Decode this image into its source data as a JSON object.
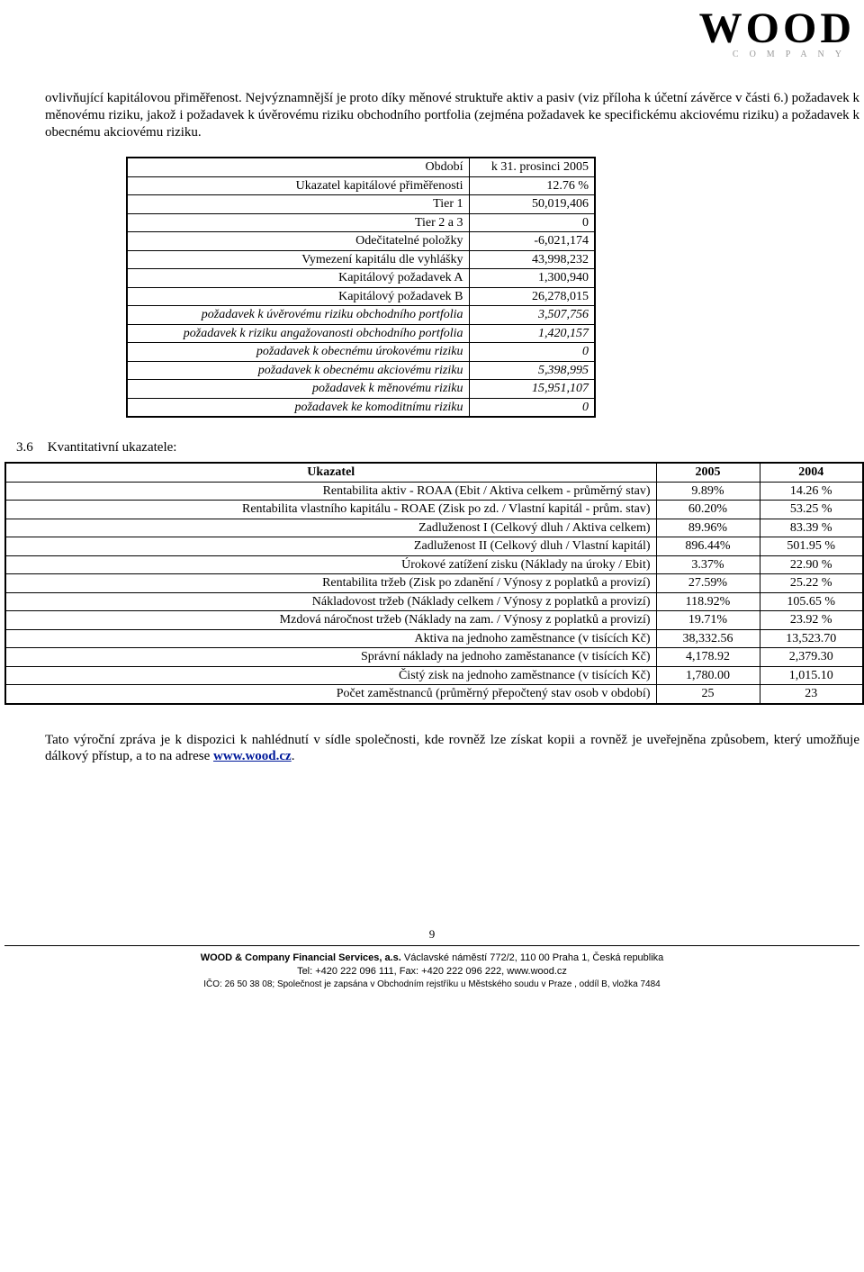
{
  "logo": {
    "text": "WOOD",
    "sub": "COMPANY"
  },
  "para1": "ovlivňující kapitálovou přiměřenost. Nejvýznamnější je proto díky měnové struktuře aktiv a pasiv (viz příloha k účetní závěrce v části 6.) požadavek k měnovému riziku, jakož i požadavek k úvěrovému riziku obchodního portfolia (zejména požadavek ke specifickému akciovému riziku) a požadavek k obecnému akciovému riziku.",
  "table1": {
    "rows": [
      {
        "label": "Období",
        "value": "k 31. prosinci 2005",
        "italic": false
      },
      {
        "label": "Ukazatel kapitálové přiměřenosti",
        "value": "12.76 %",
        "italic": false
      },
      {
        "label": "Tier 1",
        "value": "50,019,406",
        "italic": false
      },
      {
        "label": "Tier 2 a 3",
        "value": "0",
        "italic": false
      },
      {
        "label": "Odečitatelné položky",
        "value": "-6,021,174",
        "italic": false
      },
      {
        "label": "Vymezení kapitálu dle vyhlášky",
        "value": "43,998,232",
        "italic": false
      },
      {
        "label": "Kapitálový požadavek A",
        "value": "1,300,940",
        "italic": false
      },
      {
        "label": "Kapitálový požadavek B",
        "value": "26,278,015",
        "italic": false
      },
      {
        "label": "požadavek k úvěrovému riziku obchodního portfolia",
        "value": "3,507,756",
        "italic": true
      },
      {
        "label": "požadavek k riziku angažovanosti obchodního portfolia",
        "value": "1,420,157",
        "italic": true
      },
      {
        "label": "požadavek k obecnému úrokovému riziku",
        "value": "0",
        "italic": true
      },
      {
        "label": "požadavek k obecnému akciovému riziku",
        "value": "5,398,995",
        "italic": true
      },
      {
        "label": "požadavek k měnovému riziku",
        "value": "15,951,107",
        "italic": true
      },
      {
        "label": "požadavek ke komoditnímu riziku",
        "value": "0",
        "italic": true
      }
    ]
  },
  "section": {
    "num": "3.6",
    "title": "Kvantitativní ukazatele:"
  },
  "table2": {
    "headers": [
      "Ukazatel",
      "2005",
      "2004"
    ],
    "rows": [
      {
        "l": "Rentabilita aktiv - ROAA   (Ebit / Aktiva celkem - průměrný stav)",
        "a": "9.89%",
        "b": "14.26 %"
      },
      {
        "l": "Rentabilita vlastního kapitálu - ROAE   (Zisk po zd. / Vlastní kapitál - prům. stav)",
        "a": "60.20%",
        "b": "53.25 %"
      },
      {
        "l": "Zadluženost I   (Celkový dluh / Aktiva celkem)",
        "a": "89.96%",
        "b": "83.39 %"
      },
      {
        "l": "Zadluženost II   (Celkový dluh / Vlastní kapitál)",
        "a": "896.44%",
        "b": "501.95 %"
      },
      {
        "l": "Úrokové zatížení zisku   (Náklady na úroky / Ebit)",
        "a": "3.37%",
        "b": "22.90 %"
      },
      {
        "l": "Rentabilita tržeb   (Zisk po zdanění / Výnosy z poplatků a provizí)",
        "a": "27.59%",
        "b": "25.22 %"
      },
      {
        "l": "Nákladovost tržeb   (Náklady celkem / Výnosy z poplatků a provizí)",
        "a": "118.92%",
        "b": "105.65 %"
      },
      {
        "l": "Mzdová náročnost tržeb   (Náklady na zam. / Výnosy z poplatků a provizí)",
        "a": "19.71%",
        "b": "23.92 %"
      },
      {
        "l": "Aktiva na jednoho zaměstnance (v tisících Kč)",
        "a": "38,332.56",
        "b": "13,523.70"
      },
      {
        "l": "Správní náklady na jednoho zaměstanance (v tisících Kč)",
        "a": "4,178.92",
        "b": "2,379.30"
      },
      {
        "l": "Čistý zisk na jednoho zaměstnance (v tisících Kč)",
        "a": "1,780.00",
        "b": "1,015.10"
      },
      {
        "l": "Počet zaměstnanců (průměrný přepočtený stav osob v období)",
        "a": "25",
        "b": "23"
      }
    ]
  },
  "closing": {
    "pre": "Tato výroční zpráva je k dispozici k nahlédnutí v sídle společnosti, kde rovněž lze získat kopii a rovněž je uveřejněna způsobem, který umožňuje dálkový přístup, a to na adrese ",
    "link_text": "www.wood.cz",
    "post": "."
  },
  "page_num": "9",
  "footer": {
    "line1_bold": "WOOD & Company Financial Services, a.s.",
    "line1_rest": " Václavské náměstí 772/2, 110 00 Praha 1, Česká republika",
    "line2": "Tel: +420 222 096 111, Fax: +420 222 096 222, www.wood.cz",
    "line3": "IČO: 26 50 38 08; Společnost je zapsána v Obchodním rejstříku u Městského soudu v Praze , oddíl B, vložka 7484"
  }
}
